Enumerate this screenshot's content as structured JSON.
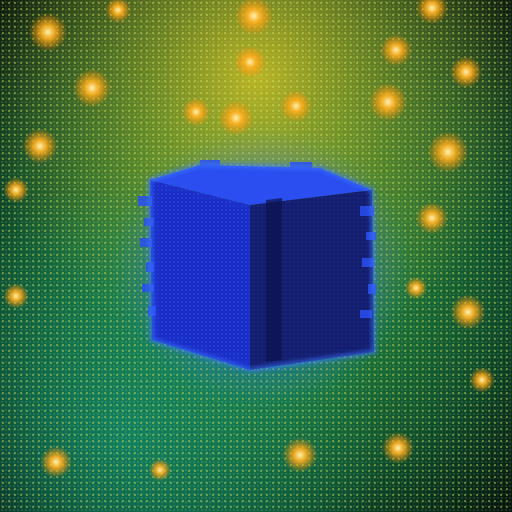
{
  "scene": {
    "subject": "glowing-voxel-cube",
    "palette": {
      "background_dark": "#0a1a0c",
      "background_green": "#1f7a3a",
      "background_yellow": "#c8b818",
      "background_teal": "#0f6a5a",
      "glow_orange": "#ffb020",
      "cube_blue_light": "#2a4ef0",
      "cube_blue_mid": "#1a2ec8",
      "cube_blue_dark": "#141e70",
      "cube_edge_glow": "#3a78ff"
    }
  }
}
